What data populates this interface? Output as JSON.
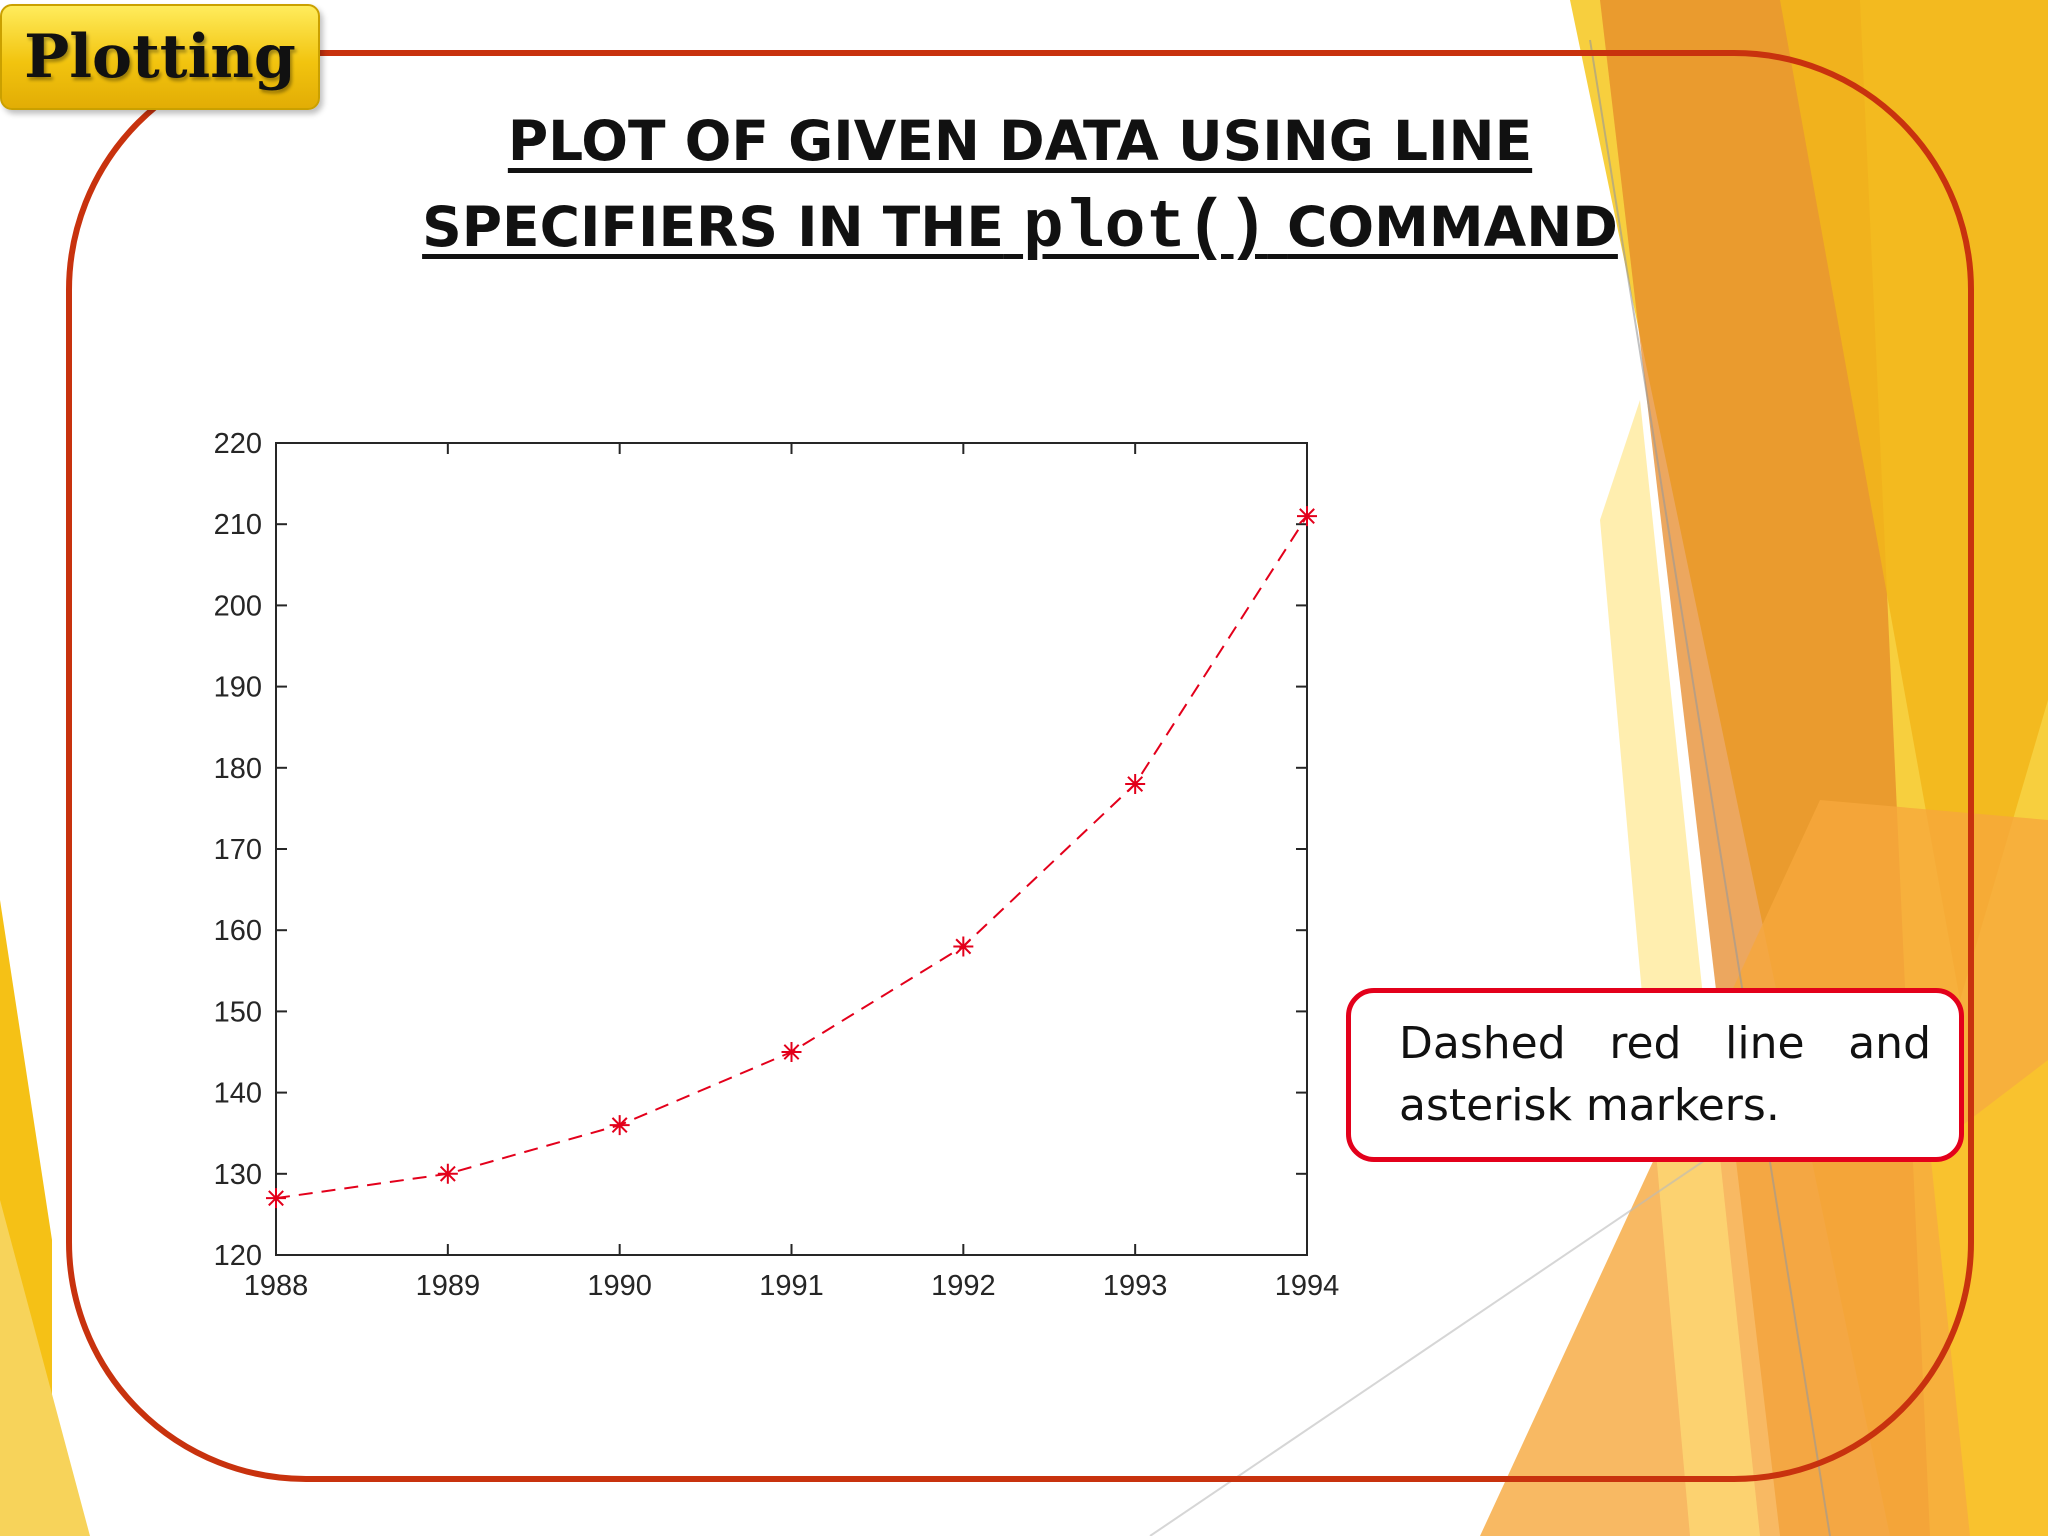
{
  "section_tag": "Plotting",
  "title": {
    "line1": "PLOT OF GIVEN DATA USING LINE",
    "line2_prefix": "SPECIFIERS IN THE",
    "line2_code": "plot()",
    "line2_suffix": "COMMAND"
  },
  "callout": "Dashed red line and asterisk markers.",
  "colors": {
    "frame": "#c8320e",
    "series": "#e3001b",
    "accent_yellow": "#f5c116",
    "accent_orange": "#e5892a"
  },
  "chart_data": {
    "type": "line",
    "x": [
      1988,
      1989,
      1990,
      1991,
      1992,
      1993,
      1994
    ],
    "series": [
      {
        "values": [
          127,
          130,
          136,
          145,
          158,
          178,
          211
        ],
        "line_style": "dashed",
        "marker": "asterisk",
        "color": "#e3001b"
      }
    ],
    "xlim": [
      1988,
      1994
    ],
    "ylim": [
      120,
      220
    ],
    "xticks": [
      1988,
      1989,
      1990,
      1991,
      1992,
      1993,
      1994
    ],
    "yticks": [
      120,
      130,
      140,
      150,
      160,
      170,
      180,
      190,
      200,
      210,
      220
    ],
    "grid": false,
    "title": "",
    "xlabel": "",
    "ylabel": ""
  }
}
